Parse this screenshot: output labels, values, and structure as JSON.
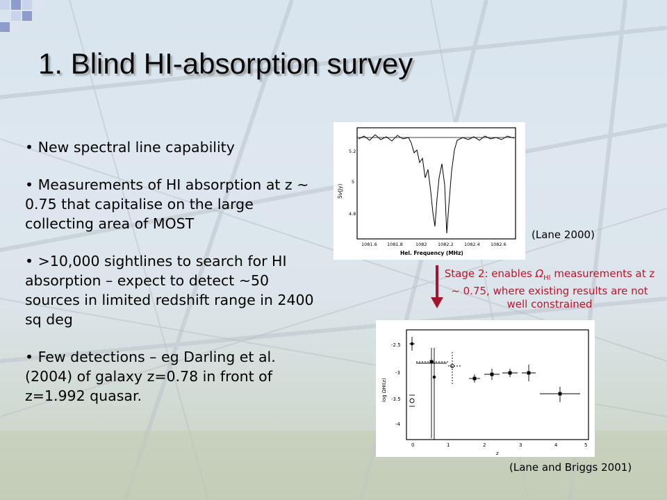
{
  "slide": {
    "title": "1. Blind HI-absorption survey",
    "bullets": [
      "• New spectral line capability",
      "• Measurements of HI absorption at z ~ 0.75 that capitalise on the large collecting area of MOST",
      "• >10,000 sightlines to search for HI absorption – expect to detect ~50 sources in limited redshift range in 2400 sq deg",
      "• Few detections – eg Darling et al. (2004) of galaxy z=0.78 in front of z=1.992 quasar."
    ],
    "stage_note": {
      "prefix": "Stage 2: enables ",
      "omega": "Ω",
      "sub": "HI",
      "suffix": " measurements at z ~ 0.75, where existing results are not well constrained"
    },
    "caption_top": "(Lane 2000)",
    "caption_bottom": "(Lane and Briggs 2001)"
  },
  "colors": {
    "annotation_red": "#c0142c",
    "arrow": "#a3152e"
  },
  "figure1": {
    "xlabel": "Hel. Frequency (MHz)",
    "ylabel": "Sν(Jy)",
    "x_ticks": [
      "1081.6",
      "1081.8",
      "1082",
      "1082.2",
      "1082.4",
      "1082.6"
    ],
    "y_ticks": [
      "5.2",
      "5",
      "4.8"
    ]
  },
  "figure2": {
    "xlabel": "z",
    "ylabel": "log ΩHI(z)",
    "x_ticks": [
      "0",
      "1",
      "2",
      "3",
      "4",
      "5"
    ],
    "y_ticks": [
      "-2.5",
      "-3",
      "-3.5",
      "-4"
    ]
  }
}
